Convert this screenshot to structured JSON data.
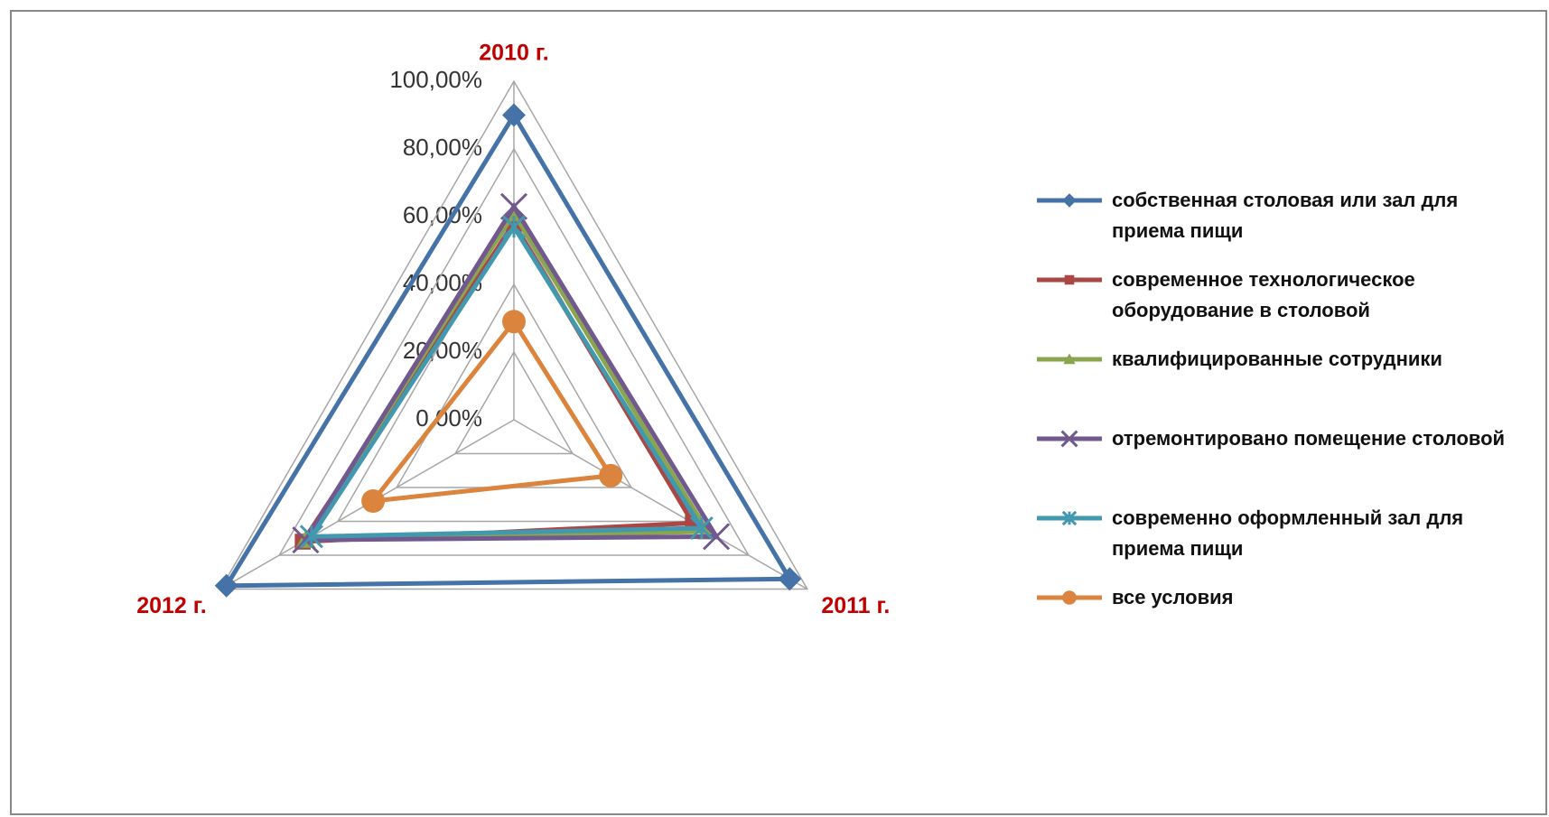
{
  "chart_data": {
    "type": "radar",
    "categories": [
      "2010 г.",
      "2011 г.",
      "2012 г."
    ],
    "series": [
      {
        "name": "собственная столовая или  зал для приема пищи",
        "color": "#4572a7",
        "marker": "diamond",
        "values": [
          90,
          94,
          98
        ]
      },
      {
        "name": "современное технологическое оборудование в столовой",
        "color": "#aa4643",
        "marker": "square",
        "values": [
          58,
          61,
          72
        ]
      },
      {
        "name": "квалифицированные сотрудники",
        "color": "#89a54e",
        "marker": "triangle",
        "values": [
          61,
          66,
          71
        ]
      },
      {
        "name": "отремонтировано помещение столовой",
        "color": "#71588f",
        "marker": "x",
        "values": [
          63,
          69,
          71
        ]
      },
      {
        "name": "современно оформленный зал для приема пищи",
        "color": "#4198af",
        "marker": "star",
        "values": [
          57,
          64,
          69
        ]
      },
      {
        "name": "все условия",
        "color": "#db843d",
        "marker": "circle",
        "values": [
          29,
          33,
          48
        ]
      }
    ],
    "ylim": [
      0,
      100
    ],
    "yticks": [
      {
        "value": 0,
        "label": "0,00%"
      },
      {
        "value": 20,
        "label": "20,00%"
      },
      {
        "value": 40,
        "label": "40,00%"
      },
      {
        "value": 60,
        "label": "60,00%"
      },
      {
        "value": 80,
        "label": "80,00%"
      },
      {
        "value": 100,
        "label": "100,00%"
      }
    ],
    "grid": true,
    "legend": "right"
  }
}
